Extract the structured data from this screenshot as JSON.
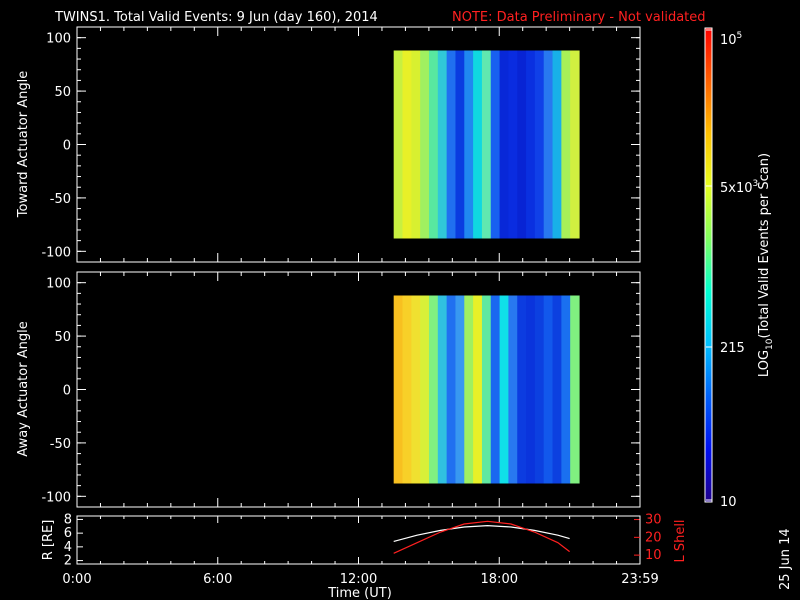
{
  "header": {
    "title": "TWINS1. Total Valid Events:  9 Jun (day 160), 2014",
    "note": "NOTE: Data Preliminary - Not validated"
  },
  "chart_data": [
    {
      "type": "heatmap",
      "panel": "top",
      "ylabel": "Toward Actuator Angle",
      "ylim": [
        -110,
        110
      ],
      "yticks": [
        "100",
        "50",
        "0",
        "-50",
        "-100"
      ],
      "xlim_hours": [
        0,
        24
      ],
      "data_x_range_hours": [
        13.5,
        21.4
      ],
      "data_y_range": [
        -88,
        88
      ],
      "colors": [
        "#c8f040",
        "#e8f028",
        "#d8f030",
        "#a0f060",
        "#58e8a0",
        "#30c8d8",
        "#2070f0",
        "#0a3ce0",
        "#2088f0",
        "#10d8e0",
        "#60e8b0",
        "#1860f0",
        "#0828d8",
        "#0a2ce0",
        "#0824d4",
        "#0a30e0",
        "#1040e8",
        "#2878f0",
        "#18b0e8",
        "#a8f058",
        "#d0f040"
      ]
    },
    {
      "type": "heatmap",
      "panel": "bottom",
      "ylabel": "Away Actuator Angle",
      "ylim": [
        -110,
        110
      ],
      "yticks": [
        "100",
        "50",
        "0",
        "-50",
        "-100"
      ],
      "xlim_hours": [
        0,
        24
      ],
      "data_x_range_hours": [
        13.5,
        21.4
      ],
      "data_y_range": [
        -88,
        88
      ],
      "colors": [
        "#f8c020",
        "#f8d028",
        "#f0e030",
        "#d8f038",
        "#80f080",
        "#30c0e0",
        "#2070f0",
        "#3898f0",
        "#a0f060",
        "#e8f028",
        "#60e8a0",
        "#1a68f0",
        "#10e0e8",
        "#2878f0",
        "#0c3ce0",
        "#0a34dc",
        "#0c40e0",
        "#1258ec",
        "#0c40e0",
        "#1a70f0",
        "#80f080"
      ]
    },
    {
      "type": "line",
      "panel": "ephemeris",
      "ylabel": "R [RE]",
      "y2label": "L Shell",
      "ylim": [
        1.5,
        8.5
      ],
      "yticks": [
        "8",
        "6",
        "4",
        "2"
      ],
      "y2lim": [
        5,
        32
      ],
      "y2ticks": [
        "30",
        "20",
        "10"
      ],
      "x": [
        13.5,
        14.5,
        15.5,
        16.5,
        17.5,
        18.5,
        19.5,
        20.5,
        21.0
      ],
      "series": [
        {
          "color": "#ffffff",
          "values": [
            4.8,
            5.7,
            6.4,
            6.9,
            7.1,
            6.9,
            6.4,
            5.7,
            5.2
          ]
        },
        {
          "color": "#ff2020",
          "axis": "right",
          "values": [
            11,
            17,
            23,
            27.5,
            29,
            27.5,
            23,
            17,
            12
          ]
        }
      ]
    }
  ],
  "xaxis": {
    "ticks": [
      "0:00",
      "6:00",
      "12:00",
      "18:00",
      "23:59"
    ],
    "label": "Time (UT)"
  },
  "colorbar": {
    "label_pre": "LOG",
    "label_sub": "10",
    "label_post": "(Total Valid  Events per Scan)",
    "tick_top_base": "10",
    "tick_top_exp": "5",
    "tick_mid_base": "5x10",
    "tick_mid_exp": "3",
    "tick_low": "215",
    "tick_bottom": "10",
    "colors": [
      "#20008c",
      "#0010f0",
      "#0060f8",
      "#00c0ff",
      "#00ffd0",
      "#80ff60",
      "#e8ff20",
      "#ffc000",
      "#ff6000",
      "#ff0000"
    ]
  },
  "footer": {
    "date": "25 Jun 14"
  }
}
